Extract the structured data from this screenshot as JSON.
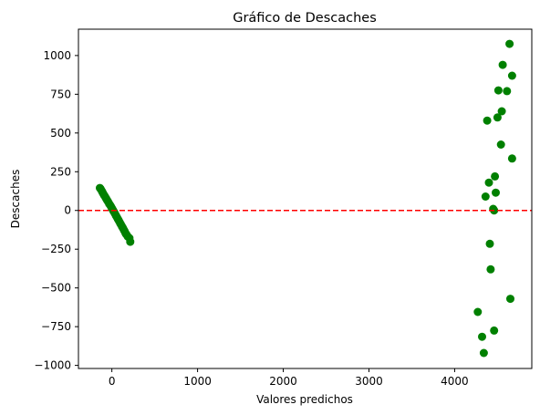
{
  "chart_data": {
    "type": "scatter",
    "title": "Gráfico de Descaches",
    "xlabel": "Valores predichos",
    "ylabel": "Descaches",
    "xlim": [
      -390,
      4900
    ],
    "ylim": [
      -1020,
      1170
    ],
    "xticks": [
      0,
      1000,
      2000,
      3000,
      4000
    ],
    "xtick_labels": [
      "0",
      "1000",
      "2000",
      "3000",
      "4000"
    ],
    "yticks": [
      -1000,
      -750,
      -500,
      -250,
      0,
      250,
      500,
      750,
      1000
    ],
    "ytick_labels": [
      "−1000",
      "−750",
      "−500",
      "−250",
      "0",
      "250",
      "500",
      "750",
      "1000"
    ],
    "grid": false,
    "legend": "none",
    "point_color": "#008000",
    "reference_line": {
      "y": 0,
      "color": "#ff0000",
      "style": "dashed"
    },
    "series": [
      {
        "points": [
          [
            -140,
            145
          ],
          [
            -130,
            138
          ],
          [
            -120,
            128
          ],
          [
            -110,
            118
          ],
          [
            -100,
            108
          ],
          [
            -90,
            98
          ],
          [
            -80,
            90
          ],
          [
            -70,
            80
          ],
          [
            -60,
            70
          ],
          [
            -50,
            62
          ],
          [
            -40,
            52
          ],
          [
            -30,
            42
          ],
          [
            -20,
            34
          ],
          [
            -10,
            25
          ],
          [
            0,
            15
          ],
          [
            10,
            5
          ],
          [
            20,
            -5
          ],
          [
            30,
            -15
          ],
          [
            40,
            -25
          ],
          [
            50,
            -35
          ],
          [
            60,
            -45
          ],
          [
            70,
            -55
          ],
          [
            80,
            -65
          ],
          [
            90,
            -75
          ],
          [
            100,
            -85
          ],
          [
            110,
            -95
          ],
          [
            120,
            -105
          ],
          [
            130,
            -115
          ],
          [
            140,
            -125
          ],
          [
            150,
            -135
          ],
          [
            160,
            -148
          ],
          [
            170,
            -155
          ],
          [
            185,
            -168
          ],
          [
            205,
            -178
          ],
          [
            215,
            -202
          ],
          [
            4270,
            -655
          ],
          [
            4320,
            -815
          ],
          [
            4340,
            -920
          ],
          [
            4360,
            90
          ],
          [
            4380,
            580
          ],
          [
            4400,
            180
          ],
          [
            4410,
            -215
          ],
          [
            4420,
            -380
          ],
          [
            4450,
            10
          ],
          [
            4460,
            -775
          ],
          [
            4470,
            220
          ],
          [
            4480,
            115
          ],
          [
            4500,
            600
          ],
          [
            4510,
            775
          ],
          [
            4540,
            425
          ],
          [
            4550,
            640
          ],
          [
            4560,
            940
          ],
          [
            4610,
            770
          ],
          [
            4640,
            1075
          ],
          [
            4650,
            -570
          ],
          [
            4670,
            870
          ],
          [
            4670,
            335
          ],
          [
            4460,
            0
          ]
        ]
      }
    ]
  }
}
